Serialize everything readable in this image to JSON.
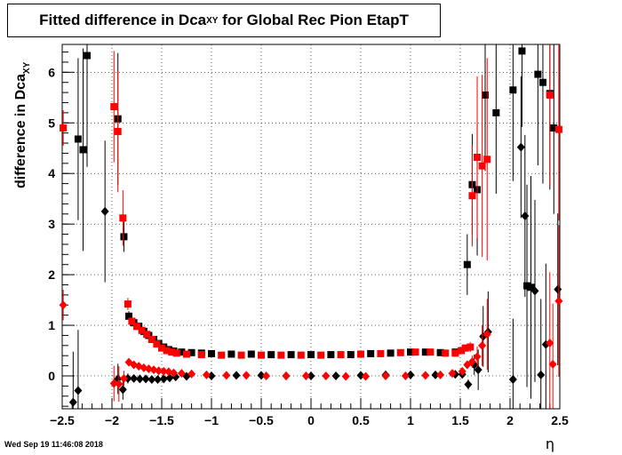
{
  "title": {
    "prefix": "Fitted difference in Dca",
    "sub": "XY",
    "suffix": " for Global Rec Pion EtapT"
  },
  "timestamp": "Wed Sep 19 11:46:08 2018",
  "colors": {
    "black": "#000000",
    "red": "#ff0000"
  },
  "chart_data": {
    "type": "scatter",
    "title": "Fitted difference in DcaXY for Global Rec Pion EtapT",
    "xlabel": "η",
    "ylabel": "difference in Dca",
    "ylabel_sub": "XY",
    "xlim": [
      -2.5,
      2.5
    ],
    "ylim": [
      -0.65,
      6.55
    ],
    "x_ticks": [
      -2.5,
      -2,
      -1.5,
      -1,
      -0.5,
      0,
      0.5,
      1,
      1.5,
      2,
      2.5
    ],
    "x_tick_labels": [
      "−2.5",
      "−2",
      "−1.5",
      "−1",
      "−0.5",
      "0",
      "0.5",
      "1",
      "1.5",
      "2",
      "2.5"
    ],
    "y_ticks": [
      0,
      1,
      2,
      3,
      4,
      5,
      6
    ],
    "y_tick_labels": [
      "0",
      "1",
      "2",
      "3",
      "4",
      "5",
      "6"
    ],
    "grid": true,
    "series": [
      {
        "color": "#000000",
        "marker": "square",
        "points": [
          [
            -2.34,
            4.68,
            1.6
          ],
          [
            -2.29,
            4.47,
            2.0
          ],
          [
            -2.25,
            6.33,
            2.2
          ],
          [
            -1.94,
            5.08,
            1.3
          ],
          [
            -1.88,
            2.75,
            0.3
          ],
          [
            -1.83,
            1.18,
            0.1
          ],
          [
            -1.78,
            1.05,
            0.08
          ],
          [
            -1.73,
            0.98,
            0.07
          ],
          [
            -1.68,
            0.88,
            0.06
          ],
          [
            -1.63,
            0.8,
            0.05
          ],
          [
            -1.58,
            0.72,
            0.05
          ],
          [
            -1.53,
            0.64,
            0.04
          ],
          [
            -1.48,
            0.57,
            0.04
          ],
          [
            -1.43,
            0.52,
            0.03
          ],
          [
            -1.38,
            0.49,
            0.03
          ],
          [
            -1.3,
            0.47,
            0.02
          ],
          [
            -1.2,
            0.46,
            0.02
          ],
          [
            -1.1,
            0.45,
            0.02
          ],
          [
            -1.0,
            0.44,
            0.02
          ],
          [
            -0.8,
            0.43,
            0.02
          ],
          [
            -0.6,
            0.43,
            0.02
          ],
          [
            -0.4,
            0.42,
            0.02
          ],
          [
            -0.2,
            0.42,
            0.02
          ],
          [
            0.0,
            0.42,
            0.02
          ],
          [
            0.2,
            0.42,
            0.02
          ],
          [
            0.4,
            0.42,
            0.02
          ],
          [
            0.6,
            0.44,
            0.02
          ],
          [
            0.8,
            0.45,
            0.02
          ],
          [
            1.0,
            0.47,
            0.02
          ],
          [
            1.15,
            0.47,
            0.02
          ],
          [
            1.3,
            0.46,
            0.02
          ],
          [
            1.45,
            0.47,
            0.02
          ],
          [
            1.57,
            2.2,
            0.6
          ],
          [
            1.62,
            3.78,
            1.0
          ],
          [
            1.67,
            3.68,
            1.3
          ],
          [
            1.75,
            5.55,
            1.5
          ],
          [
            1.86,
            5.2,
            1.6
          ],
          [
            2.03,
            5.65,
            1.8
          ],
          [
            2.12,
            6.42,
            1.5
          ],
          [
            2.17,
            1.78,
            2.0
          ],
          [
            2.21,
            1.75,
            2.2
          ],
          [
            2.28,
            5.96,
            1.8
          ],
          [
            2.33,
            5.8,
            2.0
          ],
          [
            2.4,
            5.58,
            1.9
          ],
          [
            2.44,
            4.9,
            1.7
          ]
        ]
      },
      {
        "color": "#000000",
        "marker": "diamond",
        "points": [
          [
            -2.39,
            -0.52,
            1.0
          ],
          [
            -2.34,
            -0.29,
            1.2
          ],
          [
            -2.07,
            3.25,
            1.4
          ],
          [
            -1.94,
            -0.06,
            0.3
          ],
          [
            -1.89,
            -0.27,
            0.2
          ],
          [
            -1.84,
            -0.05,
            0.1
          ],
          [
            -1.78,
            -0.05,
            0.05
          ],
          [
            -1.72,
            -0.06,
            0.04
          ],
          [
            -1.66,
            -0.06,
            0.03
          ],
          [
            -1.6,
            -0.07,
            0.03
          ],
          [
            -1.54,
            -0.07,
            0.03
          ],
          [
            -1.48,
            -0.06,
            0.02
          ],
          [
            -1.42,
            -0.04,
            0.02
          ],
          [
            -1.36,
            -0.02,
            0.02
          ],
          [
            -1.25,
            -0.01,
            0.02
          ],
          [
            -1.0,
            0.0,
            0.02
          ],
          [
            -0.75,
            0.01,
            0.02
          ],
          [
            -0.5,
            0.01,
            0.02
          ],
          [
            -0.25,
            0.0,
            0.02
          ],
          [
            0.0,
            0.0,
            0.02
          ],
          [
            0.25,
            0.0,
            0.02
          ],
          [
            0.5,
            0.01,
            0.02
          ],
          [
            0.75,
            0.02,
            0.02
          ],
          [
            1.0,
            0.02,
            0.02
          ],
          [
            1.25,
            0.02,
            0.02
          ],
          [
            1.45,
            0.03,
            0.02
          ],
          [
            1.52,
            0.03,
            0.03
          ],
          [
            1.58,
            -0.17,
            0.1
          ],
          [
            1.64,
            0.22,
            0.2
          ],
          [
            1.68,
            0.12,
            0.4
          ],
          [
            1.73,
            0.78,
            0.6
          ],
          [
            1.78,
            0.87,
            0.8
          ],
          [
            2.03,
            -0.07,
            1.2
          ],
          [
            2.11,
            4.52,
            1.4
          ],
          [
            2.15,
            3.16,
            1.6
          ],
          [
            2.25,
            1.68,
            1.8
          ],
          [
            2.31,
            0.02,
            1.5
          ],
          [
            2.36,
            0.62,
            1.6
          ],
          [
            2.48,
            1.71,
            1.5
          ]
        ]
      },
      {
        "color": "#ff0000",
        "marker": "square",
        "points": [
          [
            -2.49,
            4.9,
            0.35
          ],
          [
            -1.98,
            5.32,
            1.1
          ],
          [
            -1.94,
            4.83,
            1.2
          ],
          [
            -1.89,
            3.12,
            0.55
          ],
          [
            -1.84,
            1.42,
            0.12
          ],
          [
            -1.8,
            1.08,
            0.08
          ],
          [
            -1.75,
            0.98,
            0.06
          ],
          [
            -1.7,
            0.9,
            0.05
          ],
          [
            -1.65,
            0.82,
            0.05
          ],
          [
            -1.6,
            0.72,
            0.04
          ],
          [
            -1.55,
            0.63,
            0.04
          ],
          [
            -1.5,
            0.55,
            0.03
          ],
          [
            -1.45,
            0.5,
            0.03
          ],
          [
            -1.4,
            0.47,
            0.03
          ],
          [
            -1.35,
            0.45,
            0.02
          ],
          [
            -1.25,
            0.43,
            0.02
          ],
          [
            -1.1,
            0.42,
            0.02
          ],
          [
            -0.9,
            0.41,
            0.02
          ],
          [
            -0.7,
            0.41,
            0.02
          ],
          [
            -0.5,
            0.41,
            0.02
          ],
          [
            -0.3,
            0.41,
            0.02
          ],
          [
            -0.1,
            0.41,
            0.02
          ],
          [
            0.1,
            0.41,
            0.02
          ],
          [
            0.3,
            0.42,
            0.02
          ],
          [
            0.5,
            0.43,
            0.02
          ],
          [
            0.7,
            0.44,
            0.02
          ],
          [
            0.9,
            0.46,
            0.02
          ],
          [
            1.05,
            0.47,
            0.02
          ],
          [
            1.2,
            0.47,
            0.02
          ],
          [
            1.35,
            0.45,
            0.02
          ],
          [
            1.45,
            0.45,
            0.03
          ],
          [
            1.51,
            0.5,
            0.05
          ],
          [
            1.55,
            0.55,
            0.06
          ],
          [
            1.6,
            0.57,
            0.1
          ],
          [
            1.62,
            3.56,
            1.0
          ],
          [
            1.67,
            4.32,
            1.6
          ],
          [
            1.72,
            4.15,
            1.8
          ],
          [
            1.77,
            4.28,
            2.0
          ],
          [
            2.4,
            5.55,
            1.8
          ],
          [
            2.49,
            4.87,
            1.8
          ]
        ]
      },
      {
        "color": "#ff0000",
        "marker": "diamond",
        "points": [
          [
            -2.49,
            1.4,
            0.3
          ],
          [
            -1.98,
            -0.15,
            0.35
          ],
          [
            -1.93,
            -0.16,
            0.35
          ],
          [
            -1.88,
            -0.05,
            0.15
          ],
          [
            -1.83,
            0.27,
            0.06
          ],
          [
            -1.78,
            0.22,
            0.04
          ],
          [
            -1.73,
            0.19,
            0.03
          ],
          [
            -1.68,
            0.16,
            0.03
          ],
          [
            -1.63,
            0.14,
            0.02
          ],
          [
            -1.58,
            0.12,
            0.02
          ],
          [
            -1.53,
            0.1,
            0.02
          ],
          [
            -1.48,
            0.09,
            0.02
          ],
          [
            -1.43,
            0.08,
            0.02
          ],
          [
            -1.38,
            0.06,
            0.02
          ],
          [
            -1.3,
            0.05,
            0.02
          ],
          [
            -1.2,
            0.04,
            0.02
          ],
          [
            -1.05,
            0.02,
            0.02
          ],
          [
            -0.85,
            0.01,
            0.02
          ],
          [
            -0.65,
            0.01,
            0.02
          ],
          [
            -0.45,
            0.0,
            0.02
          ],
          [
            -0.25,
            0.0,
            0.02
          ],
          [
            -0.05,
            0.0,
            0.02
          ],
          [
            0.15,
            0.0,
            0.02
          ],
          [
            0.35,
            -0.01,
            0.02
          ],
          [
            0.55,
            -0.01,
            0.02
          ],
          [
            0.75,
            0.0,
            0.02
          ],
          [
            0.95,
            0.0,
            0.02
          ],
          [
            1.15,
            0.01,
            0.02
          ],
          [
            1.3,
            0.02,
            0.02
          ],
          [
            1.42,
            0.05,
            0.03
          ],
          [
            1.52,
            0.09,
            0.04
          ],
          [
            1.57,
            0.22,
            0.08
          ],
          [
            1.62,
            0.28,
            0.12
          ],
          [
            1.67,
            0.38,
            0.2
          ],
          [
            1.72,
            0.6,
            0.4
          ],
          [
            1.77,
            0.82,
            0.7
          ],
          [
            2.4,
            0.65,
            1.4
          ],
          [
            2.43,
            0.23,
            1.2
          ],
          [
            2.49,
            1.48,
            1.5
          ]
        ]
      }
    ]
  }
}
